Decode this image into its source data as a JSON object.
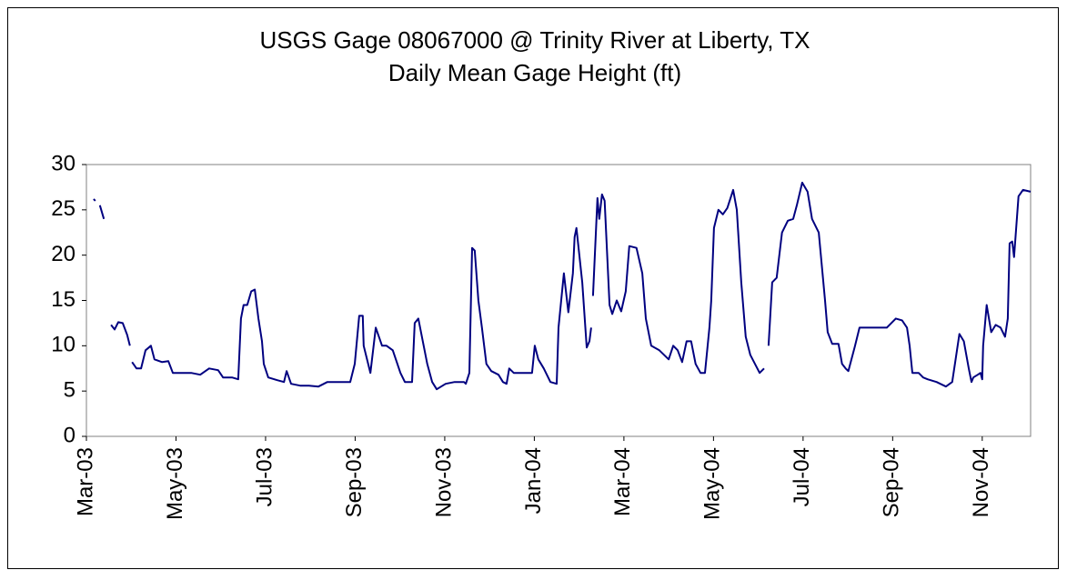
{
  "chart_data": {
    "type": "line",
    "title": "USGS Gage 08067000 @ Trinity River at Liberty, TX",
    "subtitle": "Daily Mean Gage Height (ft)",
    "color": "#000080",
    "x": [
      0.16,
      0.2,
      0.25,
      0.3,
      0.39,
      0.47,
      0.55,
      0.63,
      0.71,
      0.81,
      0.91,
      0.97,
      1.0,
      1.02,
      1.12,
      1.22,
      1.32,
      1.44,
      1.52,
      1.69,
      1.83,
      1.93,
      2.13,
      2.34,
      2.54,
      2.74,
      2.94,
      3.05,
      3.25,
      3.39,
      3.45,
      3.51,
      3.59,
      3.68,
      3.76,
      3.84,
      3.92,
      3.96,
      4.06,
      4.26,
      4.41,
      4.47,
      4.57,
      4.77,
      4.97,
      5.18,
      5.38,
      5.58,
      5.89,
      5.99,
      6.09,
      6.17,
      6.19,
      6.34,
      6.46,
      6.6,
      6.7,
      6.84,
      7.01,
      7.11,
      7.27,
      7.33,
      7.41,
      7.51,
      7.61,
      7.72,
      7.82,
      8.02,
      8.22,
      8.43,
      8.47,
      8.55,
      8.61,
      8.67,
      8.75,
      8.83,
      8.93,
      9.04,
      9.2,
      9.3,
      9.38,
      9.44,
      9.54,
      9.64,
      9.81,
      9.95,
      10.01,
      10.09,
      10.21,
      10.36,
      10.5,
      10.54,
      10.66,
      10.76,
      10.86,
      10.9,
      10.94,
      11.07,
      11.17,
      11.23,
      11.27,
      11.29,
      11.31,
      11.41,
      11.45,
      11.51,
      11.57,
      11.68,
      11.74,
      11.84,
      11.94,
      12.04,
      12.12,
      12.28,
      12.41,
      12.49,
      12.61,
      12.79,
      13.0,
      13.1,
      13.2,
      13.3,
      13.4,
      13.5,
      13.6,
      13.71,
      13.81,
      13.91,
      13.95,
      14.01,
      14.11,
      14.21,
      14.31,
      14.44,
      14.52,
      14.62,
      14.72,
      14.82,
      15.03,
      15.13,
      15.18,
      15.23,
      15.31,
      15.41,
      15.53,
      15.66,
      15.78,
      15.86,
      15.98,
      16.1,
      16.2,
      16.35,
      16.49,
      16.55,
      16.65,
      16.79,
      16.87,
      16.95,
      17.01,
      17.16,
      17.26,
      17.56,
      17.87,
      18.07,
      18.21,
      18.32,
      18.38,
      18.44,
      18.58,
      18.68,
      18.78,
      18.98,
      19.19,
      19.33,
      19.39,
      19.49,
      19.59,
      19.7,
      19.76,
      19.8,
      19.9,
      19.96,
      20.0,
      20.02,
      20.1,
      20.2,
      20.3,
      20.41,
      20.51,
      20.57,
      20.61,
      20.67,
      20.71,
      20.81,
      20.91,
      21.08
    ],
    "values": [
      26.2,
      26.0,
      null,
      25.5,
      24,
      null,
      12.3,
      11.8,
      12.6,
      12.5,
      11.2,
      10,
      null,
      8.2,
      7.5,
      7.5,
      9.5,
      10,
      8.5,
      8.2,
      8.3,
      7,
      7,
      7,
      6.8,
      7.5,
      7.3,
      6.5,
      6.5,
      6.3,
      13,
      14.5,
      14.5,
      16,
      16.2,
      13,
      10.5,
      8,
      6.5,
      6.2,
      6,
      7.2,
      5.8,
      5.6,
      5.6,
      5.5,
      6,
      6,
      6,
      8,
      13.3,
      13.3,
      10,
      7,
      12,
      10,
      10,
      9.5,
      7,
      6,
      6,
      12.5,
      13,
      10.5,
      8,
      6,
      5.2,
      5.8,
      6,
      6,
      5.8,
      7,
      20.8,
      20.5,
      15,
      12,
      8,
      7.2,
      6.8,
      6,
      5.8,
      7.5,
      7,
      7,
      7,
      7,
      10,
      8.5,
      7.5,
      6,
      5.8,
      12,
      18,
      13.7,
      18,
      22,
      23,
      17,
      9.8,
      10.5,
      12,
      null,
      15.5,
      26.3,
      24,
      26.7,
      26,
      14.5,
      13.5,
      15,
      13.8,
      16,
      21,
      20.8,
      18,
      13,
      10,
      9.5,
      8.5,
      10,
      9.5,
      8.2,
      10.5,
      10.5,
      8,
      7,
      7,
      12,
      15,
      23,
      25,
      24.5,
      25.2,
      27.2,
      25,
      17,
      11,
      9,
      7,
      7.5,
      null,
      10,
      17,
      17.5,
      22.5,
      23.8,
      24,
      25.5,
      28,
      27,
      24,
      22.5,
      15,
      11.5,
      10.2,
      10.2,
      8,
      7.5,
      7.2,
      10,
      12,
      12,
      12,
      13,
      12.8,
      12,
      10,
      7,
      7,
      6.5,
      6.3,
      6,
      5.5,
      6,
      8,
      11.3,
      10.5,
      7.5,
      6,
      6.5,
      6.8,
      7,
      6.3,
      10,
      14.5,
      11.5,
      12.3,
      12,
      11,
      13,
      21.3,
      21.5,
      19.8,
      26.5,
      27.2,
      27
    ],
    "xlim": [
      0,
      21.08
    ],
    "xticks": [
      {
        "value": 0,
        "label": "Mar-03"
      },
      {
        "value": 2,
        "label": "May-03"
      },
      {
        "value": 4,
        "label": "Jul-03"
      },
      {
        "value": 6,
        "label": "Sep-03"
      },
      {
        "value": 8,
        "label": "Nov-03"
      },
      {
        "value": 10,
        "label": "Jan-04"
      },
      {
        "value": 12,
        "label": "Mar-04"
      },
      {
        "value": 14,
        "label": "May-04"
      },
      {
        "value": 16,
        "label": "Jul-04"
      },
      {
        "value": 18,
        "label": "Sep-04"
      },
      {
        "value": 20,
        "label": "Nov-04"
      }
    ],
    "ylim": [
      0,
      30
    ],
    "yticks": [
      0,
      5,
      10,
      15,
      20,
      25,
      30
    ],
    "grid": false
  }
}
